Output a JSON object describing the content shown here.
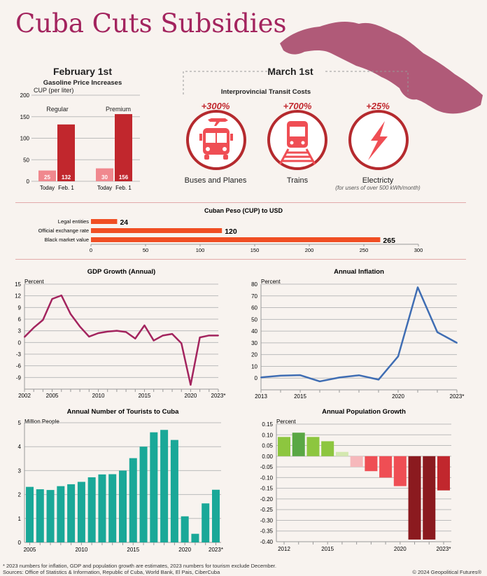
{
  "title": "Cuba Cuts Subsidies",
  "february": {
    "heading": "February 1st",
    "chart_title": "Gasoline Price Increases",
    "unit": "CUP (per liter)",
    "groups": [
      "Regular",
      "Premium"
    ],
    "bar_labels": [
      "Today",
      "Feb. 1"
    ]
  },
  "march": {
    "heading": "March 1st",
    "subheading": "Interprovincial Transit Costs",
    "items": [
      {
        "change": "+300%",
        "label": "Buses and Planes",
        "icon": "bus-plane-icon"
      },
      {
        "change": "+700%",
        "label": "Trains",
        "icon": "train-icon"
      },
      {
        "change": "+25%",
        "label": "Electricty",
        "note": "(for users of over 500 kWh/month)",
        "icon": "lightning-bolt-icon"
      }
    ]
  },
  "colors": {
    "title": "#a3245e",
    "accent_red": "#c1272d",
    "light_red": "#f0888e",
    "orange": "#f04e23",
    "gdp_line": "#a3245e",
    "inflation_line": "#3f6db3",
    "tourism_bar": "#1aa898",
    "map": "#b05a78",
    "background": "#f8f3ef"
  },
  "chart_data": [
    {
      "id": "gasoline",
      "type": "bar",
      "title": "Gasoline Price Increases",
      "ylabel": "CUP (per liter)",
      "ylim": [
        0,
        200
      ],
      "yticks": [
        0,
        50,
        100,
        150,
        200
      ],
      "categories": [
        "Regular",
        "Premium"
      ],
      "series": [
        {
          "name": "Today",
          "values": [
            25,
            30
          ]
        },
        {
          "name": "Feb. 1",
          "values": [
            132,
            156
          ]
        }
      ],
      "data_labels": [
        "25",
        "132",
        "30",
        "156"
      ],
      "grid": true
    },
    {
      "id": "peso",
      "type": "bar",
      "orientation": "horizontal",
      "title": "Cuban Peso (CUP) to USD",
      "categories": [
        "Legal entities",
        "Official exchange rate",
        "Black market value"
      ],
      "values": [
        24,
        120,
        265
      ],
      "data_labels": [
        "24",
        "120",
        "265"
      ],
      "xlim": [
        0,
        300
      ],
      "xticks": [
        0,
        50,
        100,
        150,
        200,
        250,
        300
      ]
    },
    {
      "id": "gdp",
      "type": "line",
      "title": "GDP Growth (Annual)",
      "ylabel": "Percent",
      "ylim": [
        -12,
        15
      ],
      "yticks": [
        15,
        12,
        9,
        6,
        3,
        0,
        -3,
        -6,
        -9
      ],
      "xlim": [
        2002,
        2023
      ],
      "xtick_labels": [
        "2002",
        "2005",
        "2010",
        "2015",
        "2020",
        "2023*"
      ],
      "x": [
        2002,
        2003,
        2004,
        2005,
        2006,
        2007,
        2008,
        2009,
        2010,
        2011,
        2012,
        2013,
        2014,
        2015,
        2016,
        2017,
        2018,
        2019,
        2020,
        2021,
        2022,
        2023
      ],
      "values": [
        1.4,
        3.8,
        5.8,
        11.2,
        12.1,
        7.3,
        4.1,
        1.5,
        2.4,
        2.8,
        3.0,
        2.7,
        1.0,
        4.4,
        0.5,
        1.8,
        2.2,
        -0.2,
        -10.9,
        1.3,
        1.8,
        1.8
      ],
      "grid": true
    },
    {
      "id": "inflation",
      "type": "line",
      "title": "Annual Inflation",
      "ylabel": "Percent",
      "ylim": [
        -10,
        80
      ],
      "yticks": [
        80,
        70,
        60,
        50,
        40,
        30,
        20,
        10,
        0
      ],
      "xlim": [
        2013,
        2023
      ],
      "xtick_labels": [
        "2013",
        "2015",
        "2020",
        "2023*"
      ],
      "x": [
        2013,
        2014,
        2015,
        2016,
        2017,
        2018,
        2019,
        2020,
        2021,
        2022,
        2023
      ],
      "values": [
        0.6,
        2.1,
        2.5,
        -2.8,
        0.5,
        2.4,
        -1.3,
        18.5,
        77.3,
        39.1,
        30.0
      ],
      "grid": true
    },
    {
      "id": "tourists",
      "type": "bar",
      "title": "Annual Number of Tourists to Cuba",
      "ylabel": "Million People",
      "ylim": [
        0,
        5
      ],
      "yticks": [
        0,
        1,
        2,
        3,
        4,
        5
      ],
      "xtick_labels": [
        "2005",
        "2010",
        "2015",
        "2020",
        "2023*"
      ],
      "categories": [
        2005,
        2006,
        2007,
        2008,
        2009,
        2010,
        2011,
        2012,
        2013,
        2014,
        2015,
        2016,
        2017,
        2018,
        2019,
        2020,
        2021,
        2022,
        2023
      ],
      "values": [
        2.32,
        2.22,
        2.19,
        2.35,
        2.43,
        2.53,
        2.72,
        2.84,
        2.85,
        3.0,
        3.52,
        4.0,
        4.6,
        4.7,
        4.28,
        1.09,
        0.36,
        1.63,
        2.2
      ],
      "grid": true
    },
    {
      "id": "population",
      "type": "bar",
      "title": "Annual Population Growth",
      "ylabel": "Percent",
      "ylim": [
        -0.4,
        0.15
      ],
      "yticks": [
        0.15,
        0.1,
        0.05,
        0.0,
        -0.05,
        -0.1,
        -0.15,
        -0.2,
        -0.25,
        -0.3,
        -0.35,
        -0.4
      ],
      "ytick_labels": [
        "0.15",
        "0.10",
        "0.05",
        "0.00",
        "-0.05",
        "-0.10",
        "-0.15",
        "-0.20",
        "-0.25",
        "-0.30",
        "-0.35",
        "-0.40"
      ],
      "xtick_labels": [
        "2012",
        "2015",
        "2020",
        "2023*"
      ],
      "categories": [
        2012,
        2013,
        2014,
        2015,
        2016,
        2017,
        2018,
        2019,
        2020,
        2021,
        2022,
        2023
      ],
      "values": [
        0.09,
        0.11,
        0.09,
        0.07,
        0.02,
        -0.05,
        -0.07,
        -0.1,
        -0.14,
        -0.39,
        -0.39,
        -0.16
      ],
      "colors": [
        "#8dc63f",
        "#5aa844",
        "#8dc63f",
        "#8dc63f",
        "#d4e8b0",
        "#f6b8bb",
        "#ef4e54",
        "#ef4e54",
        "#ef4e54",
        "#8b1a1f",
        "#8b1a1f",
        "#c1272d"
      ],
      "grid": true
    }
  ],
  "footer": {
    "note": "*   2023 numbers for inflation, GDP and population growth are estimates, 2023 numbers for tourism exclude December.",
    "sources": "Sources: Office of Statistics & Information, Republic of Cuba, World Bank, El Pais, CiberCuba",
    "copyright": "© 2024 Geopolitical Futures®"
  }
}
